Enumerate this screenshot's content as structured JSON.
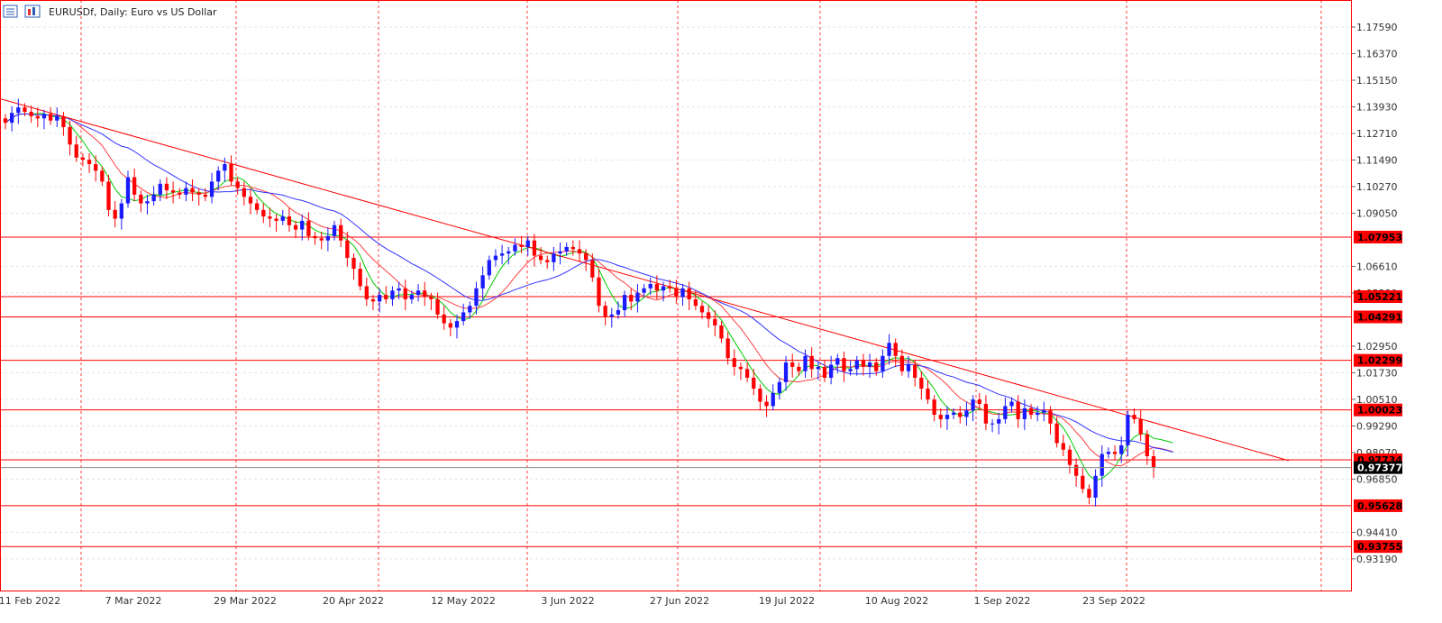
{
  "header": {
    "symbol_title": "EURUSDf, Daily:  Euro vs US Dollar",
    "icons": [
      "candlestick-chart-icon",
      "chart-window-icon"
    ]
  },
  "colors": {
    "bull": "#1a1aff",
    "bear": "#ff0000",
    "ma_fast": "#00cc00",
    "ma_mid": "#ff4040",
    "ma_slow": "#3333ff",
    "trend": "#ff0000",
    "level": "#ff0000",
    "price_bg": "#000000"
  },
  "chart_data": {
    "type": "candlestick",
    "yaxis_ticks": [
      "1.17590",
      "1.16370",
      "1.15150",
      "1.13930",
      "1.12710",
      "1.11490",
      "1.10270",
      "1.09050",
      "1.06610",
      "1.05390",
      "1.02950",
      "1.01730",
      "1.00510",
      "0.99290",
      "0.98070",
      "0.96850",
      "0.94410",
      "0.93190"
    ],
    "ylim": [
      0.9215,
      1.185
    ],
    "xaxis_ticks": [
      "11 Feb 2022",
      "7 Mar 2022",
      "29 Mar 2022",
      "20 Apr 2022",
      "12 May 2022",
      "3 Jun 2022",
      "27 Jun 2022",
      "19 Jul 2022",
      "10 Aug 2022",
      "1 Sep 2022",
      "23 Sep 2022"
    ],
    "horizontal_levels": [
      "1.07953",
      "1.05221",
      "1.04291",
      "1.02299",
      "1.00023",
      "0.97734",
      "0.95628",
      "0.93755"
    ],
    "current_price": "0.97377",
    "trendline": {
      "from": 1.143,
      "to": 0.977
    },
    "closes": [
      1.132,
      1.1365,
      1.139,
      1.137,
      1.135,
      1.134,
      1.136,
      1.133,
      1.135,
      1.13,
      1.122,
      1.116,
      1.115,
      1.113,
      1.11,
      1.105,
      1.092,
      1.088,
      1.095,
      1.107,
      1.099,
      1.095,
      1.096,
      1.099,
      1.104,
      1.101,
      1.1,
      1.099,
      1.102,
      1.1,
      1.099,
      1.098,
      1.105,
      1.11,
      1.113,
      1.105,
      1.102,
      1.098,
      1.095,
      1.092,
      1.089,
      1.088,
      1.087,
      1.089,
      1.085,
      1.083,
      1.087,
      1.08,
      1.079,
      1.078,
      1.08,
      1.085,
      1.078,
      1.07,
      1.065,
      1.057,
      1.051,
      1.05,
      1.053,
      1.051,
      1.055,
      1.056,
      1.051,
      1.053,
      1.055,
      1.052,
      1.051,
      1.044,
      1.04,
      1.038,
      1.041,
      1.045,
      1.048,
      1.056,
      1.062,
      1.069,
      1.071,
      1.072,
      1.073,
      1.076,
      1.075,
      1.078,
      1.071,
      1.069,
      1.068,
      1.072,
      1.073,
      1.075,
      1.074,
      1.072,
      1.069,
      1.061,
      1.048,
      1.043,
      1.044,
      1.046,
      1.053,
      1.05,
      1.054,
      1.056,
      1.058,
      1.055,
      1.057,
      1.056,
      1.052,
      1.056,
      1.051,
      1.048,
      1.045,
      1.042,
      1.039,
      1.033,
      1.024,
      1.02,
      1.019,
      1.015,
      1.01,
      1.004,
      1.002,
      1.008,
      1.013,
      1.022,
      1.02,
      1.018,
      1.025,
      1.019,
      1.02,
      1.015,
      1.021,
      1.024,
      1.018,
      1.019,
      1.023,
      1.02,
      1.022,
      1.018,
      1.025,
      1.031,
      1.025,
      1.018,
      1.021,
      1.015,
      1.01,
      1.005,
      0.998,
      0.996,
      0.998,
      0.999,
      0.997,
      1.0,
      1.005,
      1.003,
      0.994,
      0.994,
      0.996,
      1.002,
      1.004,
      0.996,
      1.001,
      0.998,
      0.999,
      1.0,
      0.994,
      0.985,
      0.982,
      0.975,
      0.97,
      0.964,
      0.96,
      0.97,
      0.98,
      0.981,
      0.98,
      0.984,
      0.998,
      0.996,
      0.989,
      0.979,
      0.974
    ]
  }
}
